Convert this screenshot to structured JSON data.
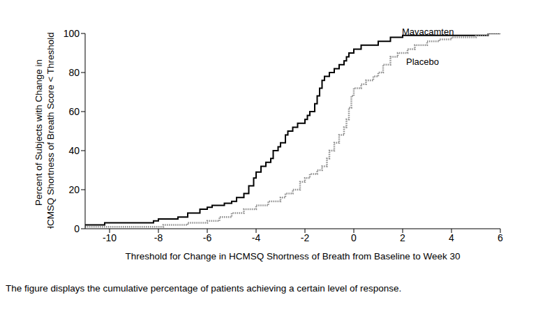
{
  "chart_data": {
    "type": "line",
    "x_label": "Threshold for Change in HCMSQ Shortness of Breath from Baseline to Week 30",
    "y_label": [
      "Percent of Subjects with Change in",
      "HCMSQ Shortness of Breath Score < Threshold"
    ],
    "caption": "The figure displays the cumulative percentage of patients achieving a certain level of response.",
    "xlim": [
      -11,
      6
    ],
    "xticks": [
      -10,
      -8,
      -6,
      -4,
      -2,
      0,
      2,
      4,
      6
    ],
    "ylim": [
      0,
      100
    ],
    "yticks": [
      0,
      20,
      40,
      60,
      80,
      100
    ],
    "grid": false,
    "series": [
      {
        "name": "Mavacamten",
        "color": "#000000",
        "line_style": "solid",
        "x": [
          -11,
          -10.2,
          -8.2,
          -8,
          -7.2,
          -6.8,
          -6.3,
          -6,
          -5.8,
          -5.3,
          -5,
          -4.8,
          -4.5,
          -4.3,
          -4.1,
          -4,
          -3.8,
          -3.6,
          -3.4,
          -3.3,
          -3.1,
          -3,
          -2.8,
          -2.7,
          -2.5,
          -2.3,
          -2,
          -1.9,
          -1.8,
          -1.6,
          -1.5,
          -1.4,
          -1.3,
          -1.2,
          -1,
          -0.8,
          -0.6,
          -0.4,
          -0.3,
          -0.2,
          0,
          0.3,
          1,
          1.5,
          2,
          5.5,
          6
        ],
        "values": [
          2,
          3,
          4,
          5,
          6,
          8,
          10,
          11,
          12,
          13,
          14,
          16,
          18,
          22,
          26,
          29,
          32,
          34,
          36,
          40,
          42,
          44,
          48,
          50,
          52,
          54,
          56,
          58,
          60,
          64,
          68,
          72,
          76,
          78,
          80,
          82,
          84,
          86,
          88,
          90,
          92,
          94,
          96,
          98,
          99,
          100,
          100
        ]
      },
      {
        "name": "Placebo",
        "color": "#8c8c8c",
        "line_style": "dotted",
        "x": [
          -11,
          -7.8,
          -6.8,
          -6,
          -5.5,
          -5,
          -4.5,
          -4,
          -3.5,
          -3,
          -2.8,
          -2.5,
          -2.2,
          -2,
          -1.8,
          -1.5,
          -1.3,
          -1.1,
          -1,
          -0.8,
          -0.6,
          -0.4,
          -0.3,
          -0.2,
          -0.1,
          0,
          0.3,
          0.5,
          0.8,
          1,
          1.2,
          1.5,
          1.8,
          2.2,
          2.5,
          3,
          3.5,
          4,
          5,
          5.5,
          6
        ],
        "values": [
          1,
          2,
          3,
          4,
          6,
          8,
          10,
          12,
          14,
          16,
          18,
          20,
          24,
          26,
          28,
          30,
          32,
          36,
          40,
          44,
          48,
          52,
          56,
          62,
          68,
          72,
          74,
          76,
          78,
          80,
          84,
          88,
          90,
          92,
          94,
          96,
          97,
          98,
          99,
          100,
          100
        ]
      }
    ]
  }
}
